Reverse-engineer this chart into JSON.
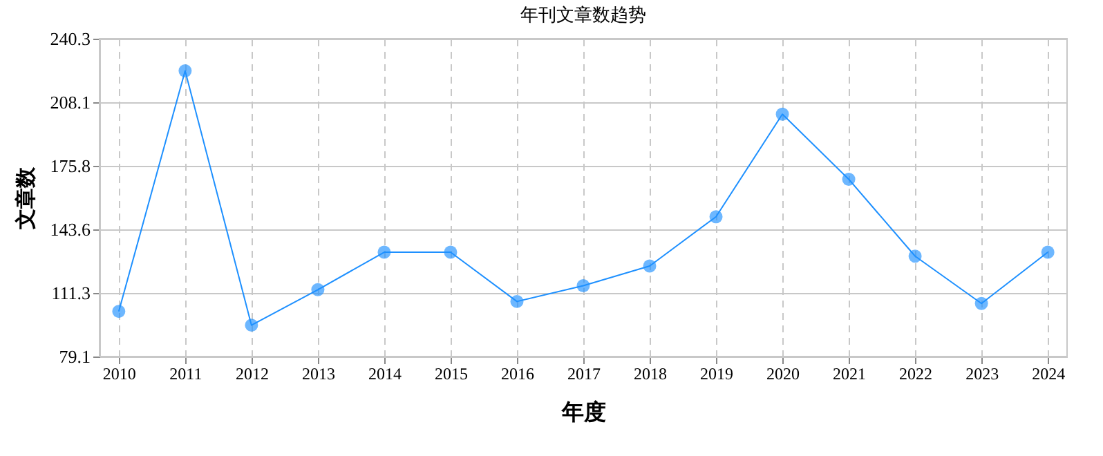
{
  "chart_data": {
    "type": "line",
    "title": "年刊文章数趋势",
    "xlabel": "年度",
    "ylabel": "文章数",
    "categories": [
      "2010",
      "2011",
      "2012",
      "2013",
      "2014",
      "2015",
      "2016",
      "2017",
      "2018",
      "2019",
      "2020",
      "2021",
      "2022",
      "2023",
      "2024"
    ],
    "series": [
      {
        "color": "#1e90ff",
        "values": [
          102,
          224,
          95,
          113,
          132,
          132,
          107,
          115,
          125,
          150,
          202,
          169,
          130,
          106,
          132
        ]
      }
    ],
    "ylim": [
      79.1,
      240.3
    ],
    "yticks": [
      79.1,
      111.3,
      143.6,
      175.8,
      208.1,
      240.3
    ],
    "grid": true,
    "marker": "circle",
    "line_style": "solid",
    "legend": false
  }
}
